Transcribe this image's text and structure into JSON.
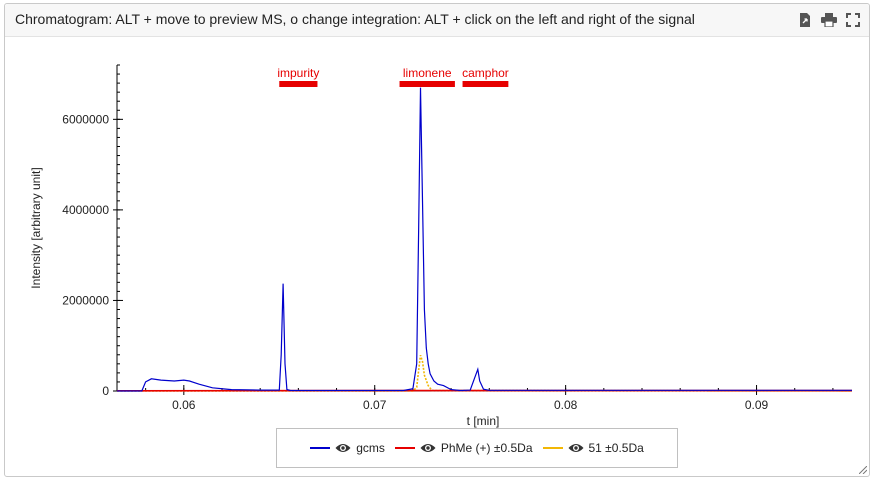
{
  "panel": {
    "title": "Chromatogram: ALT + move to preview MS, o change integration: ALT + click on the left and right of the signal",
    "toolbar": [
      {
        "icon": "export-icon"
      },
      {
        "icon": "print-icon"
      },
      {
        "icon": "fullscreen-icon"
      }
    ]
  },
  "colors": {
    "gcms": "#0000cc",
    "phme": "#e60000",
    "fifty_one": "#f2b705",
    "annotation": "#e60000"
  },
  "chart_data": {
    "type": "line",
    "xlabel": "t [min]",
    "ylabel": "Intensity [arbitrary unit]",
    "xlim": [
      0.0565,
      0.095
    ],
    "ylim": [
      0,
      7200000
    ],
    "x_ticks": [
      0.06,
      0.07,
      0.08,
      0.09
    ],
    "x_tick_labels": [
      "0.06",
      "0.07",
      "0.08",
      "0.09"
    ],
    "y_ticks": [
      0,
      2000000,
      4000000,
      6000000
    ],
    "y_tick_labels": [
      "0",
      "2000000",
      "4000000",
      "6000000"
    ],
    "annotations": [
      {
        "label": "impurity",
        "x_from": 0.065,
        "x_to": 0.067
      },
      {
        "label": "limonene",
        "x_from": 0.0713,
        "x_to": 0.0742
      },
      {
        "label": "camphor",
        "x_from": 0.0746,
        "x_to": 0.077
      }
    ],
    "legend_position": "bottom-center",
    "series": [
      {
        "name": "gcms",
        "visible": true,
        "x": [
          0.0565,
          0.0578,
          0.058,
          0.0583,
          0.0588,
          0.0595,
          0.06,
          0.0603,
          0.0608,
          0.0615,
          0.0625,
          0.064,
          0.065,
          0.0651,
          0.0652,
          0.0653,
          0.0654,
          0.0656,
          0.0665,
          0.07,
          0.0715,
          0.072,
          0.0722,
          0.0723,
          0.0724,
          0.0725,
          0.0726,
          0.0727,
          0.0728,
          0.0729,
          0.0731,
          0.0733,
          0.0736,
          0.074,
          0.0745,
          0.075,
          0.0752,
          0.0754,
          0.0755,
          0.0757,
          0.076,
          0.08,
          0.095
        ],
        "y": [
          0,
          0,
          200000,
          270000,
          240000,
          220000,
          240000,
          220000,
          150000,
          70000,
          30000,
          20000,
          20000,
          800000,
          2370000,
          600000,
          30000,
          10000,
          10000,
          10000,
          10000,
          50000,
          600000,
          3500000,
          6700000,
          4200000,
          1800000,
          950000,
          600000,
          380000,
          220000,
          150000,
          120000,
          30000,
          10000,
          20000,
          250000,
          480000,
          220000,
          40000,
          15000,
          15000,
          15000
        ]
      },
      {
        "name": "PhMe (+) ±0.5Da",
        "visible": true,
        "x": [
          0.0565,
          0.07,
          0.095
        ],
        "y": [
          5000,
          8000,
          8000
        ]
      },
      {
        "name": "51 ±0.5Da",
        "visible": true,
        "x": [
          0.0565,
          0.072,
          0.0722,
          0.0723,
          0.0724,
          0.0725,
          0.0726,
          0.0728,
          0.073,
          0.095
        ],
        "y": [
          3000,
          3000,
          80000,
          450000,
          790000,
          650000,
          350000,
          120000,
          10000,
          3000
        ]
      }
    ]
  }
}
